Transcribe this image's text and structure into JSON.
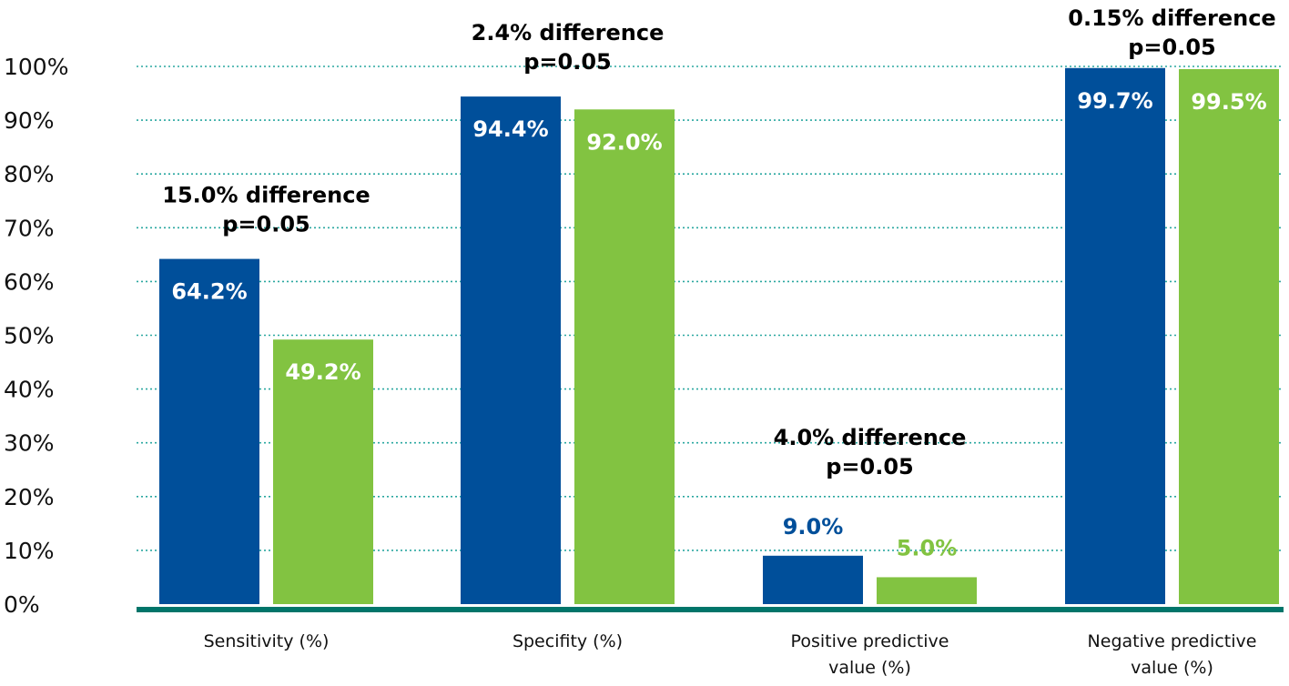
{
  "chart_data": {
    "type": "bar",
    "title": "",
    "xlabel": "",
    "ylabel": "",
    "ylim": [
      0,
      100
    ],
    "yticks": [
      "0%",
      "10%",
      "20%",
      "30%",
      "40%",
      "50%",
      "60%",
      "70%",
      "80%",
      "90%",
      "100%"
    ],
    "grid": true,
    "legend": "none",
    "categories": [
      [
        "Sensitivity (%)"
      ],
      [
        "Specifity (%)"
      ],
      [
        "Positive predictive",
        "value (%)"
      ],
      [
        "Negative predictive",
        "value (%)"
      ]
    ],
    "series": [
      {
        "color": "#004f9a",
        "values": [
          64.2,
          94.4,
          9.0,
          99.7
        ],
        "labels": [
          "64.2%",
          "94.4%",
          "9.0%",
          "99.7%"
        ]
      },
      {
        "color": "#82c341",
        "values": [
          49.2,
          92.0,
          5.0,
          99.5
        ],
        "labels": [
          "49.2%",
          "92.0%",
          "5.0%",
          "99.5%"
        ]
      }
    ],
    "annotations": [
      [
        "15.0% difference",
        "p=0.05"
      ],
      [
        "2.4% difference",
        "p=0.05"
      ],
      [
        "4.0% difference",
        "p=0.05"
      ],
      [
        "0.15% difference",
        "p=0.05"
      ]
    ],
    "colors": {
      "grid": "#2aa7a0",
      "baseline": "#00756a",
      "text": "#111111",
      "inside_label": "#ffffff"
    }
  }
}
